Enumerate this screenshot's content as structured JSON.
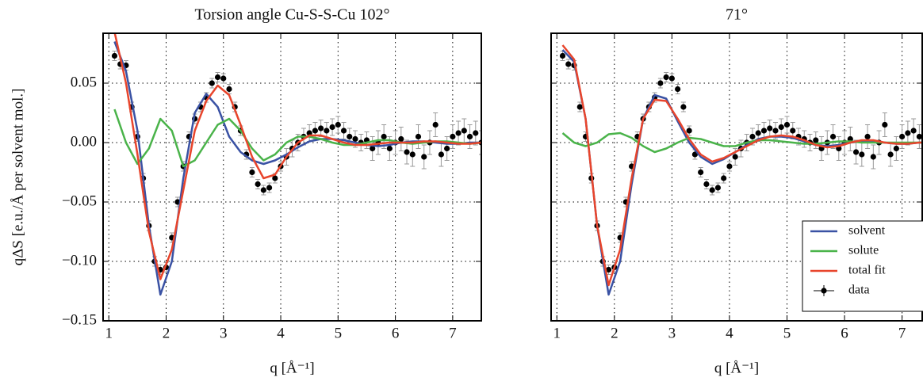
{
  "chart_data": [
    {
      "type": "line",
      "title": "Torsion angle Cu-S-S-Cu 102°",
      "x_label": "q [Å⁻¹]",
      "y_label": "qΔS [e.u./Å per solvent mol.]",
      "xlim": [
        0.9,
        7.5
      ],
      "ylim": [
        -0.15,
        0.092
      ],
      "xticks": [
        1,
        2,
        3,
        4,
        5,
        6,
        7
      ],
      "yticks": [
        {
          "value": -0.15,
          "label": "−0.15"
        },
        {
          "value": -0.1,
          "label": "−0.10"
        },
        {
          "value": -0.05,
          "label": "−0.05"
        },
        {
          "value": 0,
          "label": "0.00"
        },
        {
          "value": 0.05,
          "label": "0.05"
        }
      ],
      "grid": true,
      "series": [
        {
          "color": "#3a52a4",
          "x": [
            1.1,
            1.3,
            1.5,
            1.7,
            1.9,
            2.1,
            2.3,
            2.5,
            2.7,
            2.9,
            3.1,
            3.3,
            3.5,
            3.7,
            3.9,
            4.1,
            4.3,
            4.5,
            4.7,
            4.9,
            5.1,
            5.3,
            5.5,
            5.7,
            5.9,
            6.1,
            6.3,
            6.5,
            6.7,
            6.9,
            7.1,
            7.3,
            7.5
          ],
          "values": [
            0.085,
            0.06,
            0.01,
            -0.07,
            -0.128,
            -0.1,
            -0.03,
            0.025,
            0.041,
            0.03,
            0.005,
            -0.008,
            -0.015,
            -0.018,
            -0.015,
            -0.01,
            -0.004,
            0.001,
            0.003,
            0.003,
            0.002,
            0,
            -0.002,
            -0.003,
            -0.002,
            0,
            0.001,
            0.001,
            0,
            -0.001,
            -0.001,
            0,
            0
          ]
        },
        {
          "color": "#4ab34a",
          "x": [
            1.1,
            1.3,
            1.5,
            1.7,
            1.9,
            2.1,
            2.3,
            2.5,
            2.7,
            2.9,
            3.1,
            3.3,
            3.5,
            3.7,
            3.9,
            4.1,
            4.3,
            4.5,
            4.7,
            4.9,
            5.1,
            5.3,
            5.5,
            5.7,
            5.9,
            6.1,
            6.3,
            6.5,
            6.7,
            6.9,
            7.1,
            7.3,
            7.5
          ],
          "values": [
            0.028,
            0,
            -0.018,
            -0.005,
            0.02,
            0.01,
            -0.02,
            -0.015,
            0,
            0.015,
            0.02,
            0.01,
            -0.005,
            -0.015,
            -0.01,
            0,
            0.005,
            0.005,
            0.003,
            0,
            -0.002,
            -0.002,
            0,
            0.002,
            0.002,
            0,
            -0.001,
            0,
            0.001,
            0.001,
            0,
            -0.001,
            0
          ]
        },
        {
          "color": "#e8452c",
          "x": [
            1.1,
            1.3,
            1.5,
            1.7,
            1.9,
            2.1,
            2.3,
            2.5,
            2.7,
            2.9,
            3.1,
            3.3,
            3.5,
            3.7,
            3.9,
            4.1,
            4.3,
            4.5,
            4.7,
            4.9,
            5.1,
            5.3,
            5.5,
            5.7,
            5.9,
            6.1,
            6.3,
            6.5,
            6.7,
            6.9,
            7.1,
            7.3,
            7.5
          ],
          "values": [
            0.093,
            0.05,
            -0.01,
            -0.075,
            -0.115,
            -0.09,
            -0.04,
            0.01,
            0.035,
            0.048,
            0.04,
            0.015,
            -0.012,
            -0.03,
            -0.027,
            -0.012,
            0,
            0.006,
            0.006,
            0.003,
            0,
            -0.002,
            -0.002,
            -0.001,
            0,
            0,
            0,
            0.001,
            0.001,
            0,
            -0.001,
            -0.001,
            0
          ]
        },
        {
          "type": "errorbar",
          "color": "#000000",
          "x": [
            1.1,
            1.2,
            1.3,
            1.4,
            1.5,
            1.6,
            1.7,
            1.8,
            1.9,
            2.0,
            2.1,
            2.2,
            2.3,
            2.4,
            2.5,
            2.6,
            2.7,
            2.8,
            2.9,
            3.0,
            3.1,
            3.2,
            3.3,
            3.4,
            3.5,
            3.6,
            3.7,
            3.8,
            3.9,
            4.0,
            4.1,
            4.2,
            4.3,
            4.4,
            4.5,
            4.6,
            4.7,
            4.8,
            4.9,
            5.0,
            5.1,
            5.2,
            5.3,
            5.4,
            5.5,
            5.6,
            5.7,
            5.8,
            5.9,
            6.0,
            6.1,
            6.2,
            6.3,
            6.4,
            6.5,
            6.6,
            6.7,
            6.8,
            6.9,
            7.0,
            7.1,
            7.2,
            7.3,
            7.4,
            7.5
          ],
          "values": [
            0.073,
            0.066,
            0.065,
            0.03,
            0.005,
            -0.03,
            -0.07,
            -0.1,
            -0.107,
            -0.105,
            -0.08,
            -0.05,
            -0.02,
            0.005,
            0.02,
            0.03,
            0.038,
            0.05,
            0.055,
            0.054,
            0.045,
            0.03,
            0.01,
            -0.01,
            -0.025,
            -0.035,
            -0.04,
            -0.038,
            -0.03,
            -0.02,
            -0.012,
            -0.005,
            0,
            0.005,
            0.008,
            0.01,
            0.012,
            0.01,
            0.013,
            0.015,
            0.01,
            0.005,
            0.003,
            0,
            0.002,
            -0.005,
            0,
            0.005,
            -0.005,
            0,
            0.003,
            -0.008,
            -0.01,
            0.005,
            -0.012,
            0,
            0.015,
            -0.01,
            -0.005,
            0.005,
            0.008,
            0.01,
            0.005,
            0.008,
            0
          ],
          "errors": [
            0.004,
            0.004,
            0.004,
            0.004,
            0.004,
            0.004,
            0.004,
            0.004,
            0.004,
            0.004,
            0.004,
            0.004,
            0.004,
            0.004,
            0.004,
            0.004,
            0.004,
            0.004,
            0.004,
            0.004,
            0.004,
            0.004,
            0.004,
            0.004,
            0.004,
            0.004,
            0.004,
            0.004,
            0.004,
            0.004,
            0.007,
            0.007,
            0.007,
            0.007,
            0.007,
            0.007,
            0.007,
            0.007,
            0.007,
            0.007,
            0.007,
            0.007,
            0.007,
            0.007,
            0.007,
            0.01,
            0.01,
            0.01,
            0.01,
            0.01,
            0.01,
            0.01,
            0.01,
            0.01,
            0.01,
            0.01,
            0.01,
            0.01,
            0.01,
            0.01,
            0.01,
            0.01,
            0.01,
            0.01,
            0.01
          ]
        }
      ]
    },
    {
      "type": "line",
      "title": "71°",
      "x_label": "q [Å⁻¹]",
      "xlim": [
        0.9,
        7.35
      ],
      "ylim": [
        -0.15,
        0.092
      ],
      "xticks": [
        1,
        2,
        3,
        4,
        5,
        6,
        7
      ],
      "yticks": [
        -0.15,
        -0.1,
        -0.05,
        0,
        0.05
      ],
      "grid": true,
      "legend": "lower right",
      "series": [
        {
          "name": "solvent",
          "color": "#3a52a4",
          "x": [
            1.1,
            1.3,
            1.5,
            1.7,
            1.9,
            2.1,
            2.3,
            2.5,
            2.7,
            2.9,
            3.1,
            3.3,
            3.5,
            3.7,
            3.9,
            4.1,
            4.3,
            4.5,
            4.7,
            4.9,
            5.1,
            5.3,
            5.5,
            5.7,
            5.9,
            6.1,
            6.3,
            6.5,
            6.7,
            6.9,
            7.1,
            7.3,
            7.5
          ],
          "values": [
            0.078,
            0.068,
            0.02,
            -0.07,
            -0.128,
            -0.1,
            -0.035,
            0.02,
            0.04,
            0.037,
            0.018,
            0,
            -0.012,
            -0.018,
            -0.014,
            -0.008,
            -0.002,
            0.003,
            0.005,
            0.005,
            0.004,
            0.001,
            -0.002,
            -0.003,
            -0.002,
            0,
            0.001,
            0.001,
            0,
            -0.001,
            -0.001,
            0,
            0
          ]
        },
        {
          "name": "solute",
          "color": "#4ab34a",
          "x": [
            1.1,
            1.3,
            1.5,
            1.7,
            1.9,
            2.1,
            2.3,
            2.5,
            2.7,
            2.9,
            3.1,
            3.3,
            3.5,
            3.7,
            3.9,
            4.1,
            4.3,
            4.5,
            4.7,
            4.9,
            5.1,
            5.3,
            5.5,
            5.7,
            5.9,
            6.1,
            6.3,
            6.5,
            6.7,
            6.9,
            7.1,
            7.3,
            7.5
          ],
          "values": [
            0.008,
            0,
            -0.003,
            0,
            0.007,
            0.008,
            0.004,
            -0.003,
            -0.008,
            -0.005,
            0,
            0.004,
            0.003,
            0,
            -0.003,
            -0.003,
            0,
            0.002,
            0.002,
            0.001,
            0,
            -0.001,
            -0.001,
            0,
            0.001,
            0.001,
            0,
            0,
            0,
            0,
            0,
            0,
            0
          ]
        },
        {
          "name": "total fit",
          "color": "#e8452c",
          "x": [
            1.1,
            1.3,
            1.5,
            1.7,
            1.9,
            2.1,
            2.3,
            2.5,
            2.7,
            2.9,
            3.1,
            3.3,
            3.5,
            3.7,
            3.9,
            4.1,
            4.3,
            4.5,
            4.7,
            4.9,
            5.1,
            5.3,
            5.5,
            5.7,
            5.9,
            6.1,
            6.3,
            6.5,
            6.7,
            6.9,
            7.1,
            7.3,
            7.5
          ],
          "values": [
            0.082,
            0.07,
            0.02,
            -0.07,
            -0.12,
            -0.09,
            -0.03,
            0.02,
            0.036,
            0.035,
            0.02,
            0.003,
            -0.01,
            -0.016,
            -0.013,
            -0.008,
            -0.003,
            0.002,
            0.005,
            0.006,
            0.005,
            0.002,
            -0.002,
            -0.004,
            -0.003,
            0,
            0.002,
            0.002,
            0,
            -0.001,
            -0.001,
            0,
            0
          ]
        },
        {
          "name": "data",
          "type": "errorbar",
          "color": "#000000",
          "x": [
            1.1,
            1.2,
            1.3,
            1.4,
            1.5,
            1.6,
            1.7,
            1.8,
            1.9,
            2.0,
            2.1,
            2.2,
            2.3,
            2.4,
            2.5,
            2.6,
            2.7,
            2.8,
            2.9,
            3.0,
            3.1,
            3.2,
            3.3,
            3.4,
            3.5,
            3.6,
            3.7,
            3.8,
            3.9,
            4.0,
            4.1,
            4.2,
            4.3,
            4.4,
            4.5,
            4.6,
            4.7,
            4.8,
            4.9,
            5.0,
            5.1,
            5.2,
            5.3,
            5.4,
            5.5,
            5.6,
            5.7,
            5.8,
            5.9,
            6.0,
            6.1,
            6.2,
            6.3,
            6.4,
            6.5,
            6.6,
            6.7,
            6.8,
            6.9,
            7.0,
            7.1,
            7.2,
            7.3,
            7.4,
            7.5
          ],
          "values": [
            0.073,
            0.066,
            0.065,
            0.03,
            0.005,
            -0.03,
            -0.07,
            -0.1,
            -0.107,
            -0.105,
            -0.08,
            -0.05,
            -0.02,
            0.005,
            0.02,
            0.03,
            0.038,
            0.05,
            0.055,
            0.054,
            0.045,
            0.03,
            0.01,
            -0.01,
            -0.025,
            -0.035,
            -0.04,
            -0.038,
            -0.03,
            -0.02,
            -0.012,
            -0.005,
            0,
            0.005,
            0.008,
            0.01,
            0.012,
            0.01,
            0.013,
            0.015,
            0.01,
            0.005,
            0.003,
            0,
            0.002,
            -0.005,
            0,
            0.005,
            -0.005,
            0,
            0.003,
            -0.008,
            -0.01,
            0.005,
            -0.012,
            0,
            0.015,
            -0.01,
            -0.005,
            0.005,
            0.008,
            0.01,
            0.005,
            0.008,
            0
          ],
          "errors": [
            0.004,
            0.004,
            0.004,
            0.004,
            0.004,
            0.004,
            0.004,
            0.004,
            0.004,
            0.004,
            0.004,
            0.004,
            0.004,
            0.004,
            0.004,
            0.004,
            0.004,
            0.004,
            0.004,
            0.004,
            0.004,
            0.004,
            0.004,
            0.004,
            0.004,
            0.004,
            0.004,
            0.004,
            0.004,
            0.004,
            0.007,
            0.007,
            0.007,
            0.007,
            0.007,
            0.007,
            0.007,
            0.007,
            0.007,
            0.007,
            0.007,
            0.007,
            0.007,
            0.007,
            0.007,
            0.01,
            0.01,
            0.01,
            0.01,
            0.01,
            0.01,
            0.01,
            0.01,
            0.01,
            0.01,
            0.01,
            0.01,
            0.01,
            0.01,
            0.01,
            0.01,
            0.01,
            0.01,
            0.01,
            0.01
          ]
        }
      ]
    }
  ]
}
